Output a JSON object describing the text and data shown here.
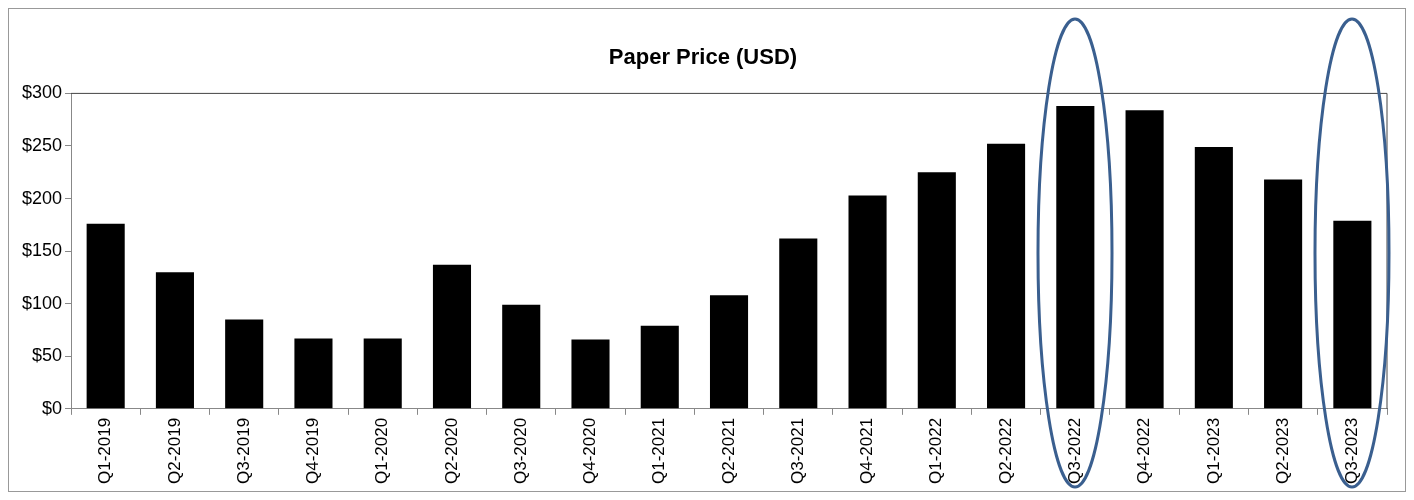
{
  "chart_data": {
    "type": "bar",
    "title": "Paper Price (USD)",
    "categories": [
      "Q1-2019",
      "Q2-2019",
      "Q3-2019",
      "Q4-2019",
      "Q1-2020",
      "Q2-2020",
      "Q3-2020",
      "Q4-2020",
      "Q1-2021",
      "Q2-2021",
      "Q3-2021",
      "Q4-2021",
      "Q1-2022",
      "Q2-2022",
      "Q3-2022",
      "Q4-2022",
      "Q1-2023",
      "Q2-2023",
      "Q3-2023"
    ],
    "values": [
      176,
      130,
      85,
      67,
      67,
      137,
      99,
      66,
      79,
      108,
      162,
      203,
      225,
      252,
      288,
      284,
      249,
      218,
      179
    ],
    "color": "#000000",
    "ylim": [
      0,
      300
    ],
    "yticks": [
      {
        "value": 0,
        "label": "$0"
      },
      {
        "value": 50,
        "label": "$50"
      },
      {
        "value": 100,
        "label": "$100"
      },
      {
        "value": 150,
        "label": "$150"
      },
      {
        "value": 200,
        "label": "$200"
      },
      {
        "value": 250,
        "label": "$250"
      },
      {
        "value": 300,
        "label": "$300"
      }
    ],
    "grid": false,
    "legend": false
  }
}
